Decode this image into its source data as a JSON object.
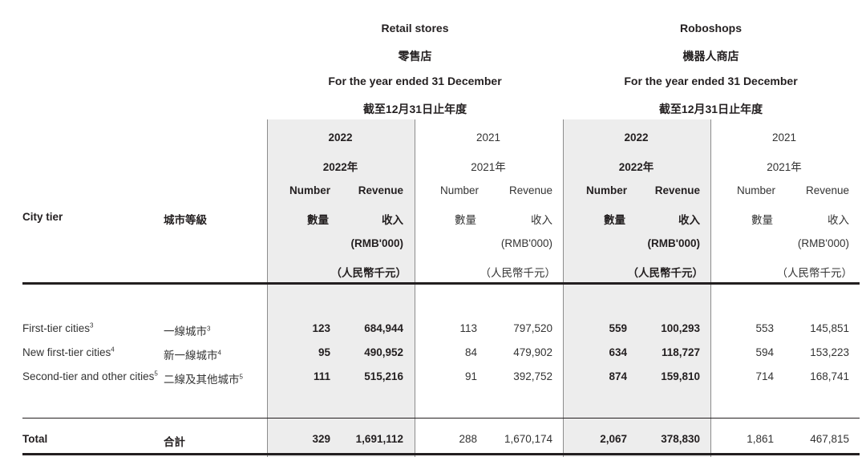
{
  "retail": {
    "title_en": "Retail stores",
    "title_zh": "零售店",
    "period_en": "For the year ended 31 December",
    "period_zh": "截至12月31日止年度"
  },
  "robo": {
    "title_en": "Roboshops",
    "title_zh": "機器人商店",
    "period_en": "For the year ended 31 December",
    "period_zh": "截至12月31日止年度"
  },
  "years": {
    "y2022": "2022",
    "y2022_zh": "2022年",
    "y2021": "2021",
    "y2021_zh": "2021年"
  },
  "columns": {
    "city_tier": "City tier",
    "city_tier_zh": "城市等級",
    "number": "Number",
    "number_zh": "數量",
    "revenue": "Revenue",
    "revenue_zh": "收入",
    "unit": "(RMB'000)",
    "unit_zh": "（人民幣千元）"
  },
  "rows": [
    {
      "name_en": "First-tier cities",
      "sup_en": "3",
      "name_zh": "一線城市",
      "sup_zh": "3",
      "retail_num_2022": "123",
      "retail_rev_2022": "684,944",
      "retail_num_2021": "113",
      "retail_rev_2021": "797,520",
      "robo_num_2022": "559",
      "robo_rev_2022": "100,293",
      "robo_num_2021": "553",
      "robo_rev_2021": "145,851"
    },
    {
      "name_en": "New first-tier cities",
      "sup_en": "4",
      "name_zh": "新一線城市",
      "sup_zh": "4",
      "retail_num_2022": "95",
      "retail_rev_2022": "490,952",
      "retail_num_2021": "84",
      "retail_rev_2021": "479,902",
      "robo_num_2022": "634",
      "robo_rev_2022": "118,727",
      "robo_num_2021": "594",
      "robo_rev_2021": "153,223"
    },
    {
      "name_en": "Second-tier and other cities",
      "sup_en": "5",
      "name_zh": "二線及其他城市",
      "sup_zh": "5",
      "retail_num_2022": "111",
      "retail_rev_2022": "515,216",
      "retail_num_2021": "91",
      "retail_rev_2021": "392,752",
      "robo_num_2022": "874",
      "robo_rev_2022": "159,810",
      "robo_num_2021": "714",
      "robo_rev_2021": "168,741"
    }
  ],
  "total": {
    "label_en": "Total",
    "label_zh": "合計",
    "retail_num_2022": "329",
    "retail_rev_2022": "1,691,112",
    "retail_num_2021": "288",
    "retail_rev_2021": "1,670,174",
    "robo_num_2022": "2,067",
    "robo_rev_2022": "378,830",
    "robo_num_2021": "1,861",
    "robo_rev_2021": "467,815"
  }
}
